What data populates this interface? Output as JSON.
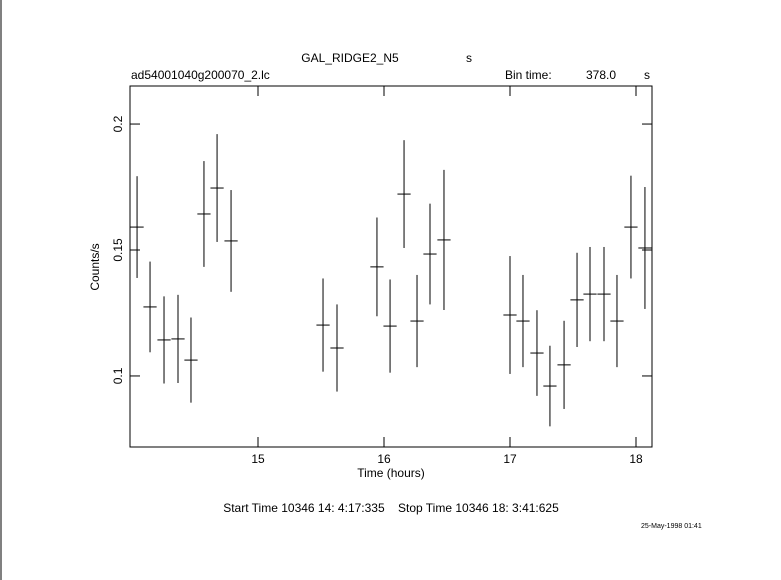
{
  "chart_data": {
    "type": "errorbar",
    "title": "GAL_RIDGE2_N5",
    "title_unit": "s",
    "file_name": "ad54001040g200070_2.lc",
    "bin_time_label": "Bin time:",
    "bin_time": "378.0",
    "bin_time_unit": "s",
    "x_label": "Time (hours)",
    "y_label": "Counts/s",
    "time_range": "Start Time 10346 14: 4:17:335    Stop Time 10346 18: 3:41:625",
    "date": "25-May-1998 01:41",
    "color": "#000000",
    "xlim": [
      13.984,
      18.127
    ],
    "ylim": [
      0.0718,
      0.2151
    ],
    "xticks": [
      15,
      16,
      17,
      18
    ],
    "yticks": [
      0.1,
      0.15,
      0.2
    ],
    "x": [
      14.04,
      14.143,
      14.254,
      14.365,
      14.468,
      14.571,
      14.675,
      14.786,
      15.516,
      15.627,
      15.944,
      16.048,
      16.159,
      16.262,
      16.365,
      16.476,
      17.0,
      17.103,
      17.214,
      17.317,
      17.429,
      17.532,
      17.635,
      17.746,
      17.849,
      17.96,
      18.071
    ],
    "values": [
      0.1591,
      0.1274,
      0.1143,
      0.1147,
      0.1063,
      0.1643,
      0.1746,
      0.1536,
      0.1202,
      0.1111,
      0.1433,
      0.1198,
      0.1722,
      0.1218,
      0.1484,
      0.154,
      0.1242,
      0.1218,
      0.1091,
      0.096,
      0.1044,
      0.1302,
      0.1325,
      0.1325,
      0.1218,
      0.1591,
      0.1508
    ],
    "errors": [
      0.0202,
      0.018,
      0.0173,
      0.0175,
      0.0169,
      0.021,
      0.0214,
      0.0202,
      0.0185,
      0.0173,
      0.0196,
      0.0185,
      0.0214,
      0.0183,
      0.02,
      0.0278,
      0.0234,
      0.0183,
      0.017,
      0.016,
      0.0175,
      0.0187,
      0.0187,
      0.0187,
      0.0183,
      0.0204,
      0.0242
    ]
  }
}
